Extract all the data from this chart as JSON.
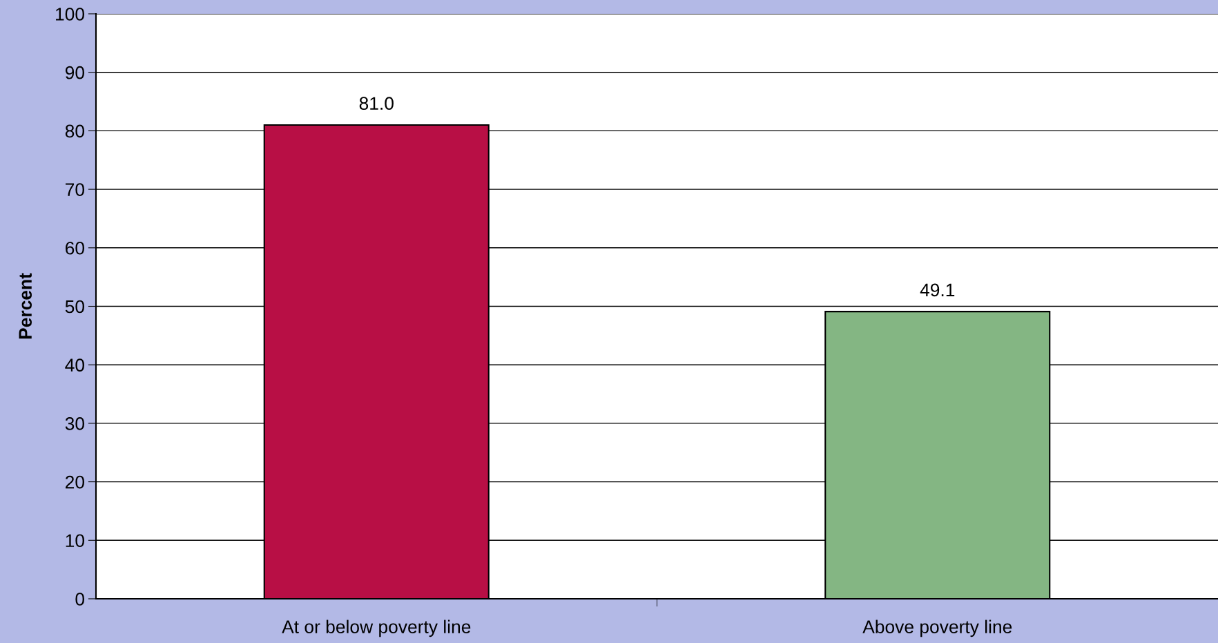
{
  "chart_data": {
    "type": "bar",
    "ylabel": "Percent",
    "categories": [
      "At or below poverty line",
      "Above poverty line"
    ],
    "values": [
      81.0,
      49.1
    ],
    "colors": [
      "#b80f45",
      "#84b683"
    ],
    "ylim": [
      0,
      100
    ],
    "yticks": [
      0,
      10,
      20,
      30,
      40,
      50,
      60,
      70,
      80,
      90,
      100
    ],
    "grid": "y",
    "value_labels": [
      "81.0",
      "49.1"
    ]
  }
}
